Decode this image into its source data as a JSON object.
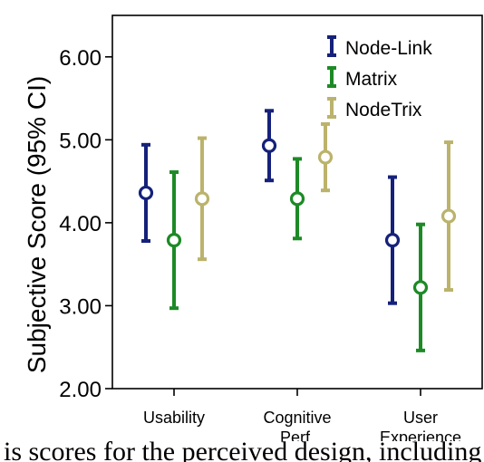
{
  "chart_data": {
    "type": "scatter",
    "ylabel": "Subjective Score (95% CI)",
    "ylim": [
      2.0,
      6.5
    ],
    "yticks": [
      "2.00",
      "3.00",
      "4.00",
      "5.00",
      "6.00"
    ],
    "categories": [
      [
        "Usability"
      ],
      [
        "Cognitive",
        "Perf."
      ],
      [
        "User",
        "Experience"
      ]
    ],
    "grid": false,
    "legend_placement": "top-right",
    "series": [
      {
        "name": "Node-Link",
        "color": "#15217a",
        "mean": [
          4.36,
          4.93,
          3.79
        ],
        "lower": [
          3.78,
          4.51,
          3.03
        ],
        "upper": [
          4.94,
          5.35,
          4.55
        ]
      },
      {
        "name": "Matrix",
        "color": "#1d8a26",
        "mean": [
          3.79,
          4.29,
          3.22
        ],
        "lower": [
          2.97,
          3.81,
          2.46
        ],
        "upper": [
          4.61,
          4.77,
          3.98
        ]
      },
      {
        "name": "NodeTrix",
        "color": "#bbb36c",
        "mean": [
          4.29,
          4.79,
          4.08
        ],
        "lower": [
          3.56,
          4.39,
          3.19
        ],
        "upper": [
          5.02,
          5.19,
          4.97
        ]
      }
    ]
  },
  "caption": "is scores for the perceived design, including "
}
